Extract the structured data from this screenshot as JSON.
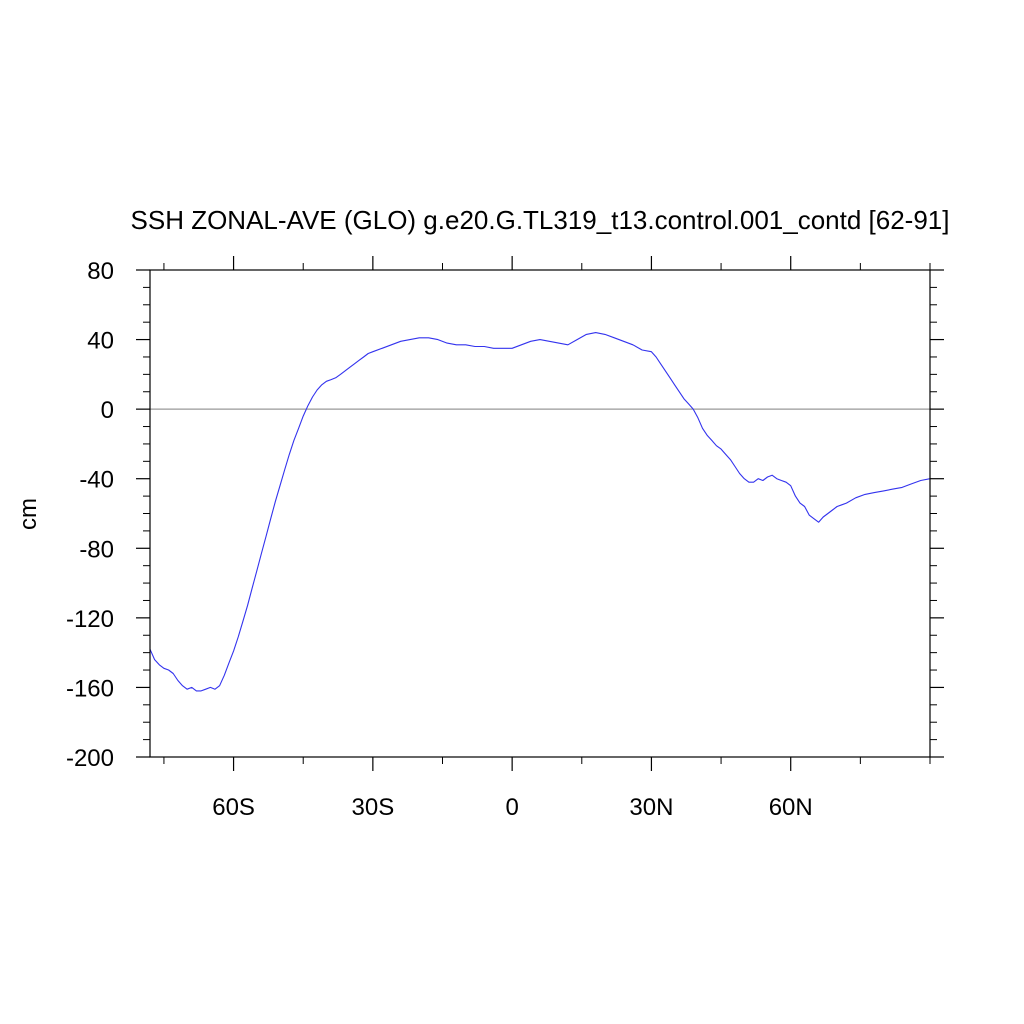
{
  "chart_data": {
    "type": "line",
    "title": "SSH ZONAL-AVE (GLO) g.e20.G.TL319_t13.control.001_contd [62-91]",
    "xlabel": "",
    "ylabel": "cm",
    "xlim": [
      -78,
      90
    ],
    "ylim": [
      -200,
      80
    ],
    "x_ticks": [
      -60,
      -30,
      0,
      30,
      60
    ],
    "x_tick_labels": [
      "60S",
      "30S",
      "0",
      "30N",
      "60N"
    ],
    "y_ticks": [
      80,
      40,
      0,
      -40,
      -80,
      -120,
      -160,
      -200
    ],
    "y_tick_labels": [
      "80",
      "40",
      "0",
      "-40",
      "-80",
      "-120",
      "-160",
      "-200"
    ],
    "reference_line": 0,
    "colors": {
      "series": "#3333ee",
      "reference": "#999999",
      "frame": "#000000"
    },
    "series": [
      {
        "x": [
          -78,
          -77,
          -76,
          -75,
          -74,
          -73,
          -72,
          -71,
          -70,
          -69,
          -68,
          -67,
          -66,
          -65,
          -64,
          -63,
          -62,
          -61,
          -60,
          -59,
          -58,
          -57,
          -56,
          -55,
          -54,
          -53,
          -52,
          -51,
          -50,
          -49,
          -48,
          -47,
          -46,
          -45,
          -44,
          -43,
          -42,
          -41,
          -40,
          -39,
          -38,
          -37,
          -36,
          -35,
          -34,
          -33,
          -32,
          -31,
          -30,
          -28,
          -26,
          -24,
          -22,
          -20,
          -18,
          -16,
          -14,
          -12,
          -10,
          -8,
          -6,
          -4,
          -2,
          0,
          2,
          4,
          6,
          8,
          10,
          12,
          14,
          16,
          18,
          20,
          22,
          24,
          26,
          28,
          30,
          31,
          32,
          33,
          34,
          35,
          36,
          37,
          38,
          39,
          40,
          41,
          42,
          43,
          44,
          45,
          46,
          47,
          48,
          49,
          50,
          51,
          52,
          53,
          54,
          55,
          56,
          57,
          58,
          59,
          60,
          61,
          62,
          63,
          64,
          65,
          66,
          67,
          68,
          69,
          70,
          71,
          72,
          74,
          76,
          78,
          80,
          82,
          84,
          86,
          88,
          90
        ],
        "y": [
          -138,
          -144,
          -147,
          -149,
          -150,
          -152,
          -156,
          -159,
          -161,
          -160,
          -162,
          -162,
          -161,
          -160,
          -161,
          -159,
          -153,
          -146,
          -139,
          -131,
          -122,
          -113,
          -103,
          -93,
          -83,
          -73,
          -63,
          -53,
          -44,
          -35,
          -26,
          -18,
          -11,
          -4,
          2,
          7,
          11,
          14,
          16,
          17,
          18,
          20,
          22,
          24,
          26,
          28,
          30,
          32,
          33,
          35,
          37,
          39,
          40,
          41,
          41,
          40,
          38,
          37,
          37,
          36,
          36,
          35,
          35,
          35,
          37,
          39,
          40,
          39,
          38,
          37,
          40,
          43,
          44,
          43,
          41,
          39,
          37,
          34,
          33,
          30,
          26,
          22,
          18,
          14,
          10,
          6,
          3,
          0,
          -5,
          -11,
          -15,
          -18,
          -21,
          -23,
          -26,
          -29,
          -33,
          -37,
          -40,
          -42,
          -42,
          -40,
          -41,
          -39,
          -38,
          -40,
          -41,
          -42,
          -44,
          -50,
          -54,
          -56,
          -61,
          -63,
          -65,
          -62,
          -60,
          -58,
          -56,
          -55,
          -54,
          -51,
          -49,
          -48,
          -47,
          -46,
          -45,
          -43,
          -41,
          -40
        ]
      }
    ]
  }
}
